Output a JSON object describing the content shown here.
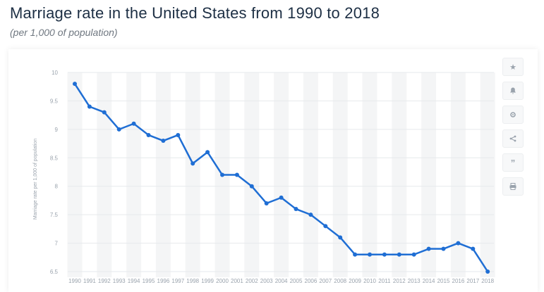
{
  "header": {
    "title": "Marriage rate in the United States from 1990 to 2018",
    "subtitle": "(per 1,000 of population)"
  },
  "colors": {
    "line": "#1f6ed4",
    "band": "#f4f5f6",
    "grid": "#e6e9ec",
    "tick_label": "#9aa3ad"
  },
  "toolbar": {
    "icons": [
      "star-icon",
      "bell-icon",
      "settings-icon",
      "share-icon",
      "quote-icon",
      "print-icon"
    ]
  },
  "chart_data": {
    "type": "line",
    "title": "Marriage rate in the United States from 1990 to 2018",
    "subtitle": "(per 1,000 of population)",
    "xlabel": "",
    "ylabel": "Marriage rate per 1,000 of population",
    "x": [
      1990,
      1991,
      1992,
      1993,
      1994,
      1995,
      1996,
      1997,
      1998,
      1999,
      2000,
      2001,
      2002,
      2003,
      2004,
      2005,
      2006,
      2007,
      2008,
      2009,
      2010,
      2011,
      2012,
      2013,
      2014,
      2015,
      2016,
      2017,
      2018
    ],
    "series": [
      {
        "values": [
          9.8,
          9.4,
          9.3,
          9.0,
          9.1,
          8.9,
          8.8,
          8.9,
          8.4,
          8.6,
          8.2,
          8.2,
          8.0,
          7.7,
          7.8,
          7.6,
          7.5,
          7.3,
          7.1,
          6.8,
          6.8,
          6.8,
          6.8,
          6.8,
          6.9,
          6.9,
          7.0,
          6.9,
          6.5
        ]
      }
    ],
    "ylim": [
      6.5,
      10
    ],
    "yticks": [
      "10",
      "9.5",
      "9",
      "8.5",
      "8",
      "7.5",
      "7",
      "6.5"
    ],
    "grid": true,
    "legend": "none"
  }
}
